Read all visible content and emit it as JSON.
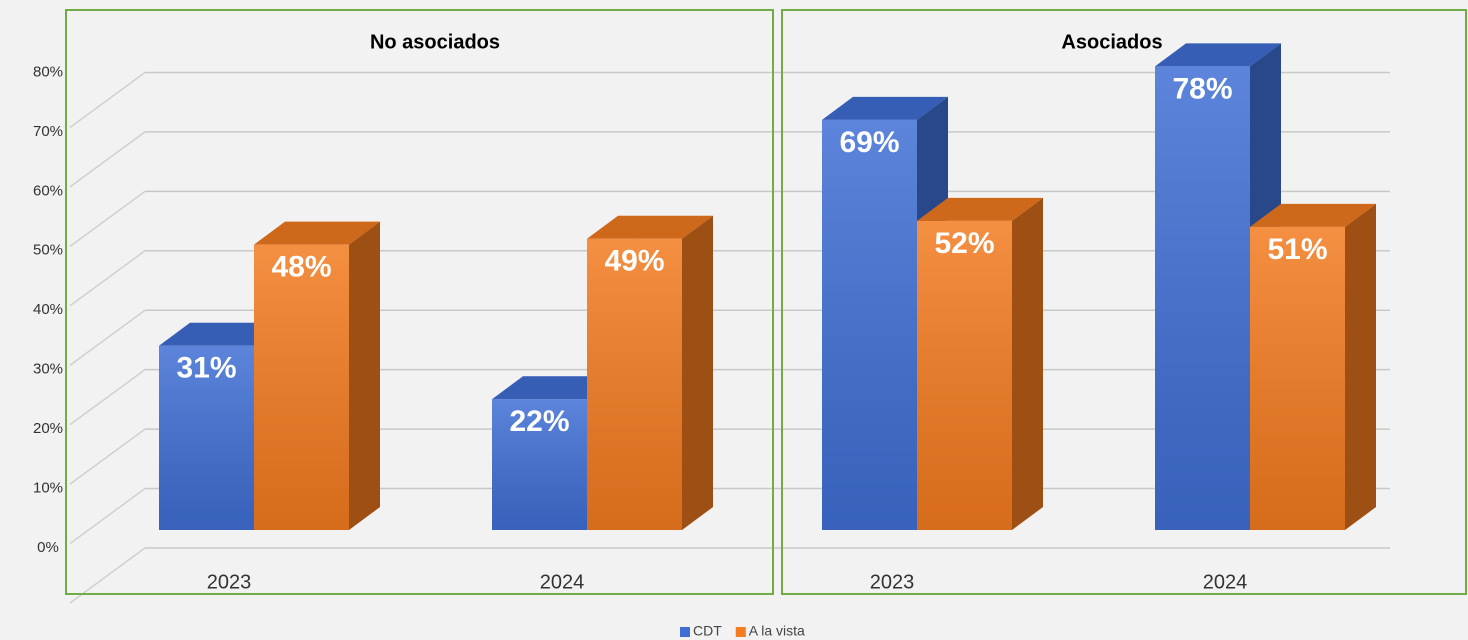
{
  "chart_data": {
    "type": "bar",
    "ylim": [
      0,
      90
    ],
    "yticks": [
      {
        "value": 0,
        "label": "0%"
      },
      {
        "value": 10,
        "label": "10%"
      },
      {
        "value": 20,
        "label": "20%"
      },
      {
        "value": 30,
        "label": "30%"
      },
      {
        "value": 40,
        "label": "40%"
      },
      {
        "value": 50,
        "label": "50%"
      },
      {
        "value": 60,
        "label": "60%"
      },
      {
        "value": 70,
        "label": "70%"
      },
      {
        "value": 80,
        "label": "80%"
      }
    ],
    "grid": true,
    "legend": "bottom",
    "series": [
      {
        "name": "CDT",
        "color": "#3f6fd4"
      },
      {
        "name": "A la vista",
        "color": "#f37b20"
      }
    ],
    "panels": [
      {
        "title": "No asociados",
        "categories": [
          "2023",
          "2024"
        ],
        "series": [
          {
            "values": [
              31,
              22
            ],
            "value_labels": [
              "31%",
              "22%"
            ]
          },
          {
            "values": [
              48,
              49
            ],
            "value_labels": [
              "48%",
              "49%"
            ]
          }
        ]
      },
      {
        "title": "Asociados",
        "categories": [
          "2023",
          "2024"
        ],
        "series": [
          {
            "values": [
              69,
              78
            ],
            "value_labels": [
              "69%",
              "78%"
            ]
          },
          {
            "values": [
              52,
              51
            ],
            "value_labels": [
              "52%",
              "51%"
            ]
          }
        ]
      }
    ]
  }
}
